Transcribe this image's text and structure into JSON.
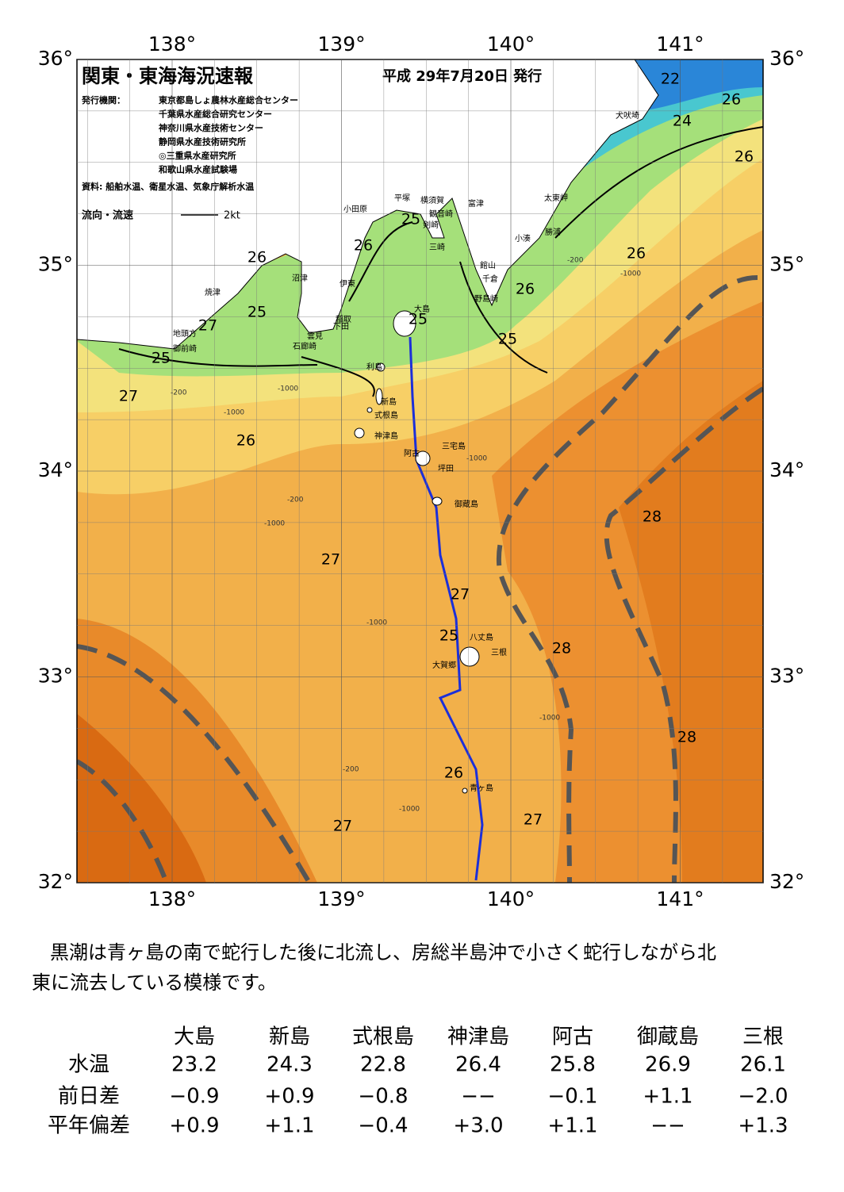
{
  "header": {
    "title": "関東・東海海況速報",
    "issue_date": "平成 29年7月20日 発行",
    "issuer_label": "発行機関：",
    "issuers": [
      "東京都島しょ農林水産総合センター",
      "千葉県水産総合研究センター",
      "神奈川県水産技術センター",
      "静岡県水産技術研究所",
      "◎三重県水産研究所",
      "和歌山県水産試験場"
    ],
    "source": "資料: 船舶水温、衛星水温、気象庁解析水温",
    "legend_label": "流向・流速",
    "legend_scale": "2kt"
  },
  "map": {
    "lon_ticks": [
      {
        "value": 138,
        "label": "138°"
      },
      {
        "value": 139,
        "label": "139°"
      },
      {
        "value": 140,
        "label": "140°"
      },
      {
        "value": 141,
        "label": "141°"
      }
    ],
    "lat_ticks": [
      {
        "value": 36,
        "label": "36°"
      },
      {
        "value": 35,
        "label": "35°"
      },
      {
        "value": 34,
        "label": "34°"
      },
      {
        "value": 33,
        "label": "33°"
      },
      {
        "value": 32,
        "label": "32°"
      }
    ],
    "places": [
      "大島",
      "利島",
      "新島",
      "式根島",
      "神津島",
      "阿古",
      "三宅島",
      "坪田",
      "御蔵島",
      "八丈島",
      "三根",
      "大賀郷",
      "青ヶ島",
      "小田原",
      "平塚",
      "横須賀",
      "観音崎",
      "富津",
      "剣崎",
      "三崎",
      "館山",
      "千倉",
      "野島崎",
      "小湊",
      "勝浦",
      "太東岬",
      "犬吠埼",
      "沼津",
      "伊東",
      "稲取",
      "下田",
      "雲見",
      "石廊崎",
      "焼津",
      "地頭方",
      "御前崎"
    ],
    "contour_labels": [
      "22",
      "26",
      "24",
      "26",
      "26",
      "25",
      "26",
      "26",
      "25",
      "27",
      "25",
      "25",
      "27",
      "26",
      "27",
      "28",
      "28",
      "28",
      "27",
      "25",
      "26",
      "27",
      "27",
      "26",
      "25"
    ],
    "depth_labels": [
      "-200",
      "-1000",
      "-1000",
      "-200",
      "-1000",
      "-1000",
      "-200",
      "-1000",
      "-1000",
      "-1000",
      "-1000",
      "-200"
    ]
  },
  "description": [
    "黒潮は青ヶ島の南で蛇行した後に北流し、房総半島沖で小さく蛇行しながら北",
    "東に流去している模様です。"
  ],
  "table": {
    "columns": [
      "大島",
      "新島",
      "式根島",
      "神津島",
      "阿古",
      "御蔵島",
      "三根"
    ],
    "rows": [
      [
        "水温",
        "23.2",
        "24.3",
        "22.8",
        "26.4",
        "25.8",
        "26.9",
        "26.1"
      ],
      [
        "前日差",
        "−0.9",
        "+0.9",
        "−0.8",
        "−−",
        "−0.1",
        "+1.1",
        "−2.0"
      ],
      [
        "平年偏差",
        "+0.9",
        "+1.1",
        "−0.4",
        "+3.0",
        "+1.1",
        "−−",
        "+1.3"
      ]
    ]
  }
}
